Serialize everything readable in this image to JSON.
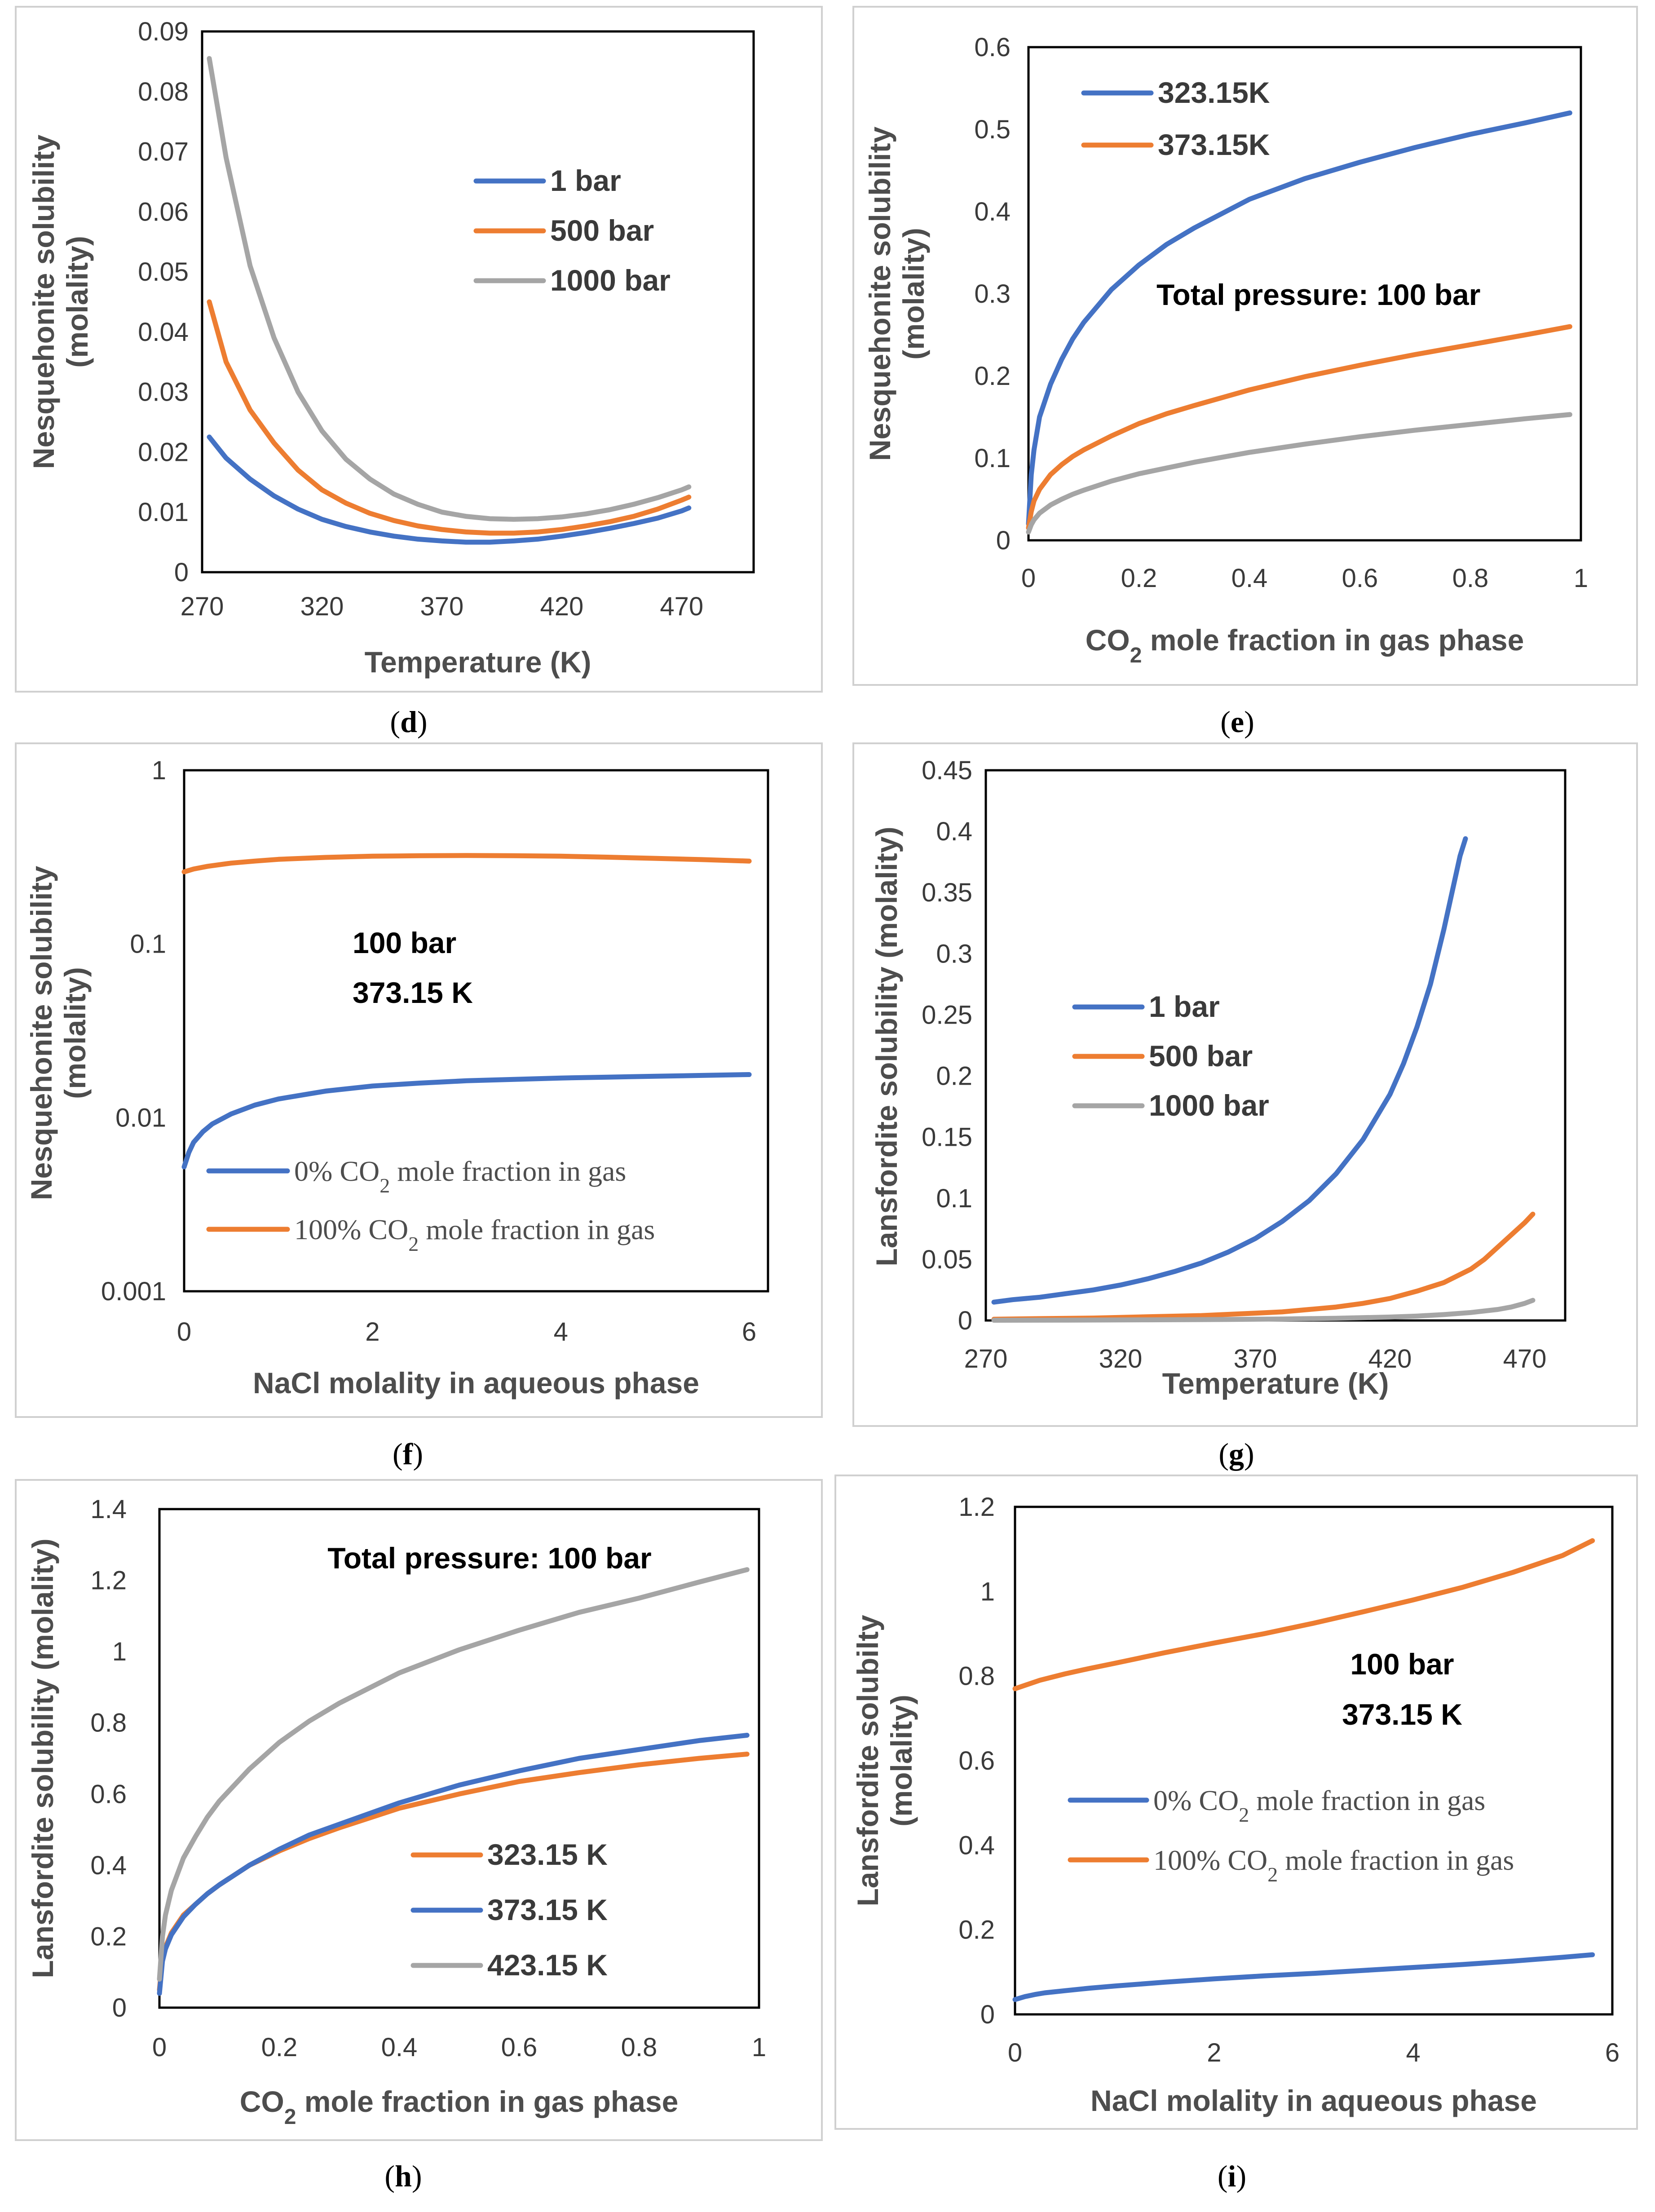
{
  "chart_data": [
    {
      "id": "d",
      "type": "line",
      "scale": "linear",
      "xlabel": "Temperature (K)",
      "ylabel": [
        "Nesquehonite solubility",
        "(molality)"
      ],
      "xlim": [
        270,
        500
      ],
      "ylim": [
        0,
        0.09
      ],
      "xticks": [
        "270",
        "320",
        "370",
        "420",
        "470"
      ],
      "yticks": [
        "0",
        "0.01",
        "0.02",
        "0.03",
        "0.04",
        "0.05",
        "0.06",
        "0.07",
        "0.08",
        "0.09"
      ],
      "legend": "center-right",
      "series": [
        {
          "name": "1 bar",
          "color": "#4472c4",
          "x": [
            273,
            280,
            290,
            300,
            310,
            320,
            330,
            340,
            350,
            360,
            370,
            380,
            390,
            400,
            410,
            420,
            430,
            440,
            450,
            460,
            470,
            473
          ],
          "y": [
            0.0225,
            0.019,
            0.0155,
            0.0127,
            0.0105,
            0.0088,
            0.0076,
            0.0067,
            0.006,
            0.0055,
            0.0052,
            0.005,
            0.005,
            0.0052,
            0.0055,
            0.006,
            0.0066,
            0.0073,
            0.0081,
            0.009,
            0.0102,
            0.0107
          ]
        },
        {
          "name": "500 bar",
          "color": "#ed7d31",
          "x": [
            273,
            280,
            290,
            300,
            310,
            320,
            330,
            340,
            350,
            360,
            370,
            380,
            390,
            400,
            410,
            420,
            430,
            440,
            450,
            460,
            470,
            473
          ],
          "y": [
            0.045,
            0.035,
            0.027,
            0.0215,
            0.017,
            0.0137,
            0.0115,
            0.0098,
            0.0086,
            0.0077,
            0.0071,
            0.0067,
            0.0065,
            0.0065,
            0.0067,
            0.0071,
            0.0077,
            0.0084,
            0.0093,
            0.0105,
            0.012,
            0.0125
          ]
        },
        {
          "name": "1000 bar",
          "color": "#a5a5a5",
          "x": [
            273,
            280,
            290,
            300,
            310,
            320,
            330,
            340,
            350,
            360,
            370,
            380,
            390,
            400,
            410,
            420,
            430,
            440,
            450,
            460,
            470,
            473
          ],
          "y": [
            0.0855,
            0.069,
            0.051,
            0.039,
            0.03,
            0.0235,
            0.0188,
            0.0155,
            0.013,
            0.0113,
            0.01,
            0.0093,
            0.0089,
            0.0088,
            0.0089,
            0.0092,
            0.0097,
            0.0104,
            0.0113,
            0.0124,
            0.0137,
            0.0142
          ]
        }
      ]
    },
    {
      "id": "e",
      "type": "line",
      "scale": "linear",
      "xlabel_pre": "CO",
      "xlabel_sub": "2",
      "xlabel_post": " mole fraction in gas phase",
      "ylabel": [
        "Nesquehonite solubility",
        "(molality)"
      ],
      "xlim": [
        0,
        1
      ],
      "ylim": [
        0,
        0.6
      ],
      "xticks": [
        "0",
        "0.2",
        "0.4",
        "0.6",
        "0.8",
        "1"
      ],
      "yticks": [
        "0",
        "0.1",
        "0.2",
        "0.3",
        "0.4",
        "0.5",
        "0.6"
      ],
      "legend": "top-left",
      "annotations": [
        "Total pressure: 100 bar"
      ],
      "series": [
        {
          "name": "323.15K",
          "color": "#4472c4",
          "x": [
            0,
            0.005,
            0.01,
            0.02,
            0.04,
            0.06,
            0.08,
            0.1,
            0.15,
            0.2,
            0.25,
            0.3,
            0.4,
            0.5,
            0.6,
            0.7,
            0.8,
            0.9,
            0.98
          ],
          "y": [
            0.02,
            0.08,
            0.11,
            0.15,
            0.19,
            0.22,
            0.245,
            0.265,
            0.305,
            0.335,
            0.36,
            0.38,
            0.415,
            0.44,
            0.46,
            0.478,
            0.494,
            0.508,
            0.52
          ]
        },
        {
          "name": "373.15K",
          "color": "#ed7d31",
          "x": [
            0,
            0.005,
            0.01,
            0.02,
            0.04,
            0.06,
            0.08,
            0.1,
            0.15,
            0.2,
            0.25,
            0.3,
            0.4,
            0.5,
            0.6,
            0.7,
            0.8,
            0.9,
            0.98
          ],
          "y": [
            0.015,
            0.035,
            0.048,
            0.062,
            0.08,
            0.092,
            0.102,
            0.11,
            0.127,
            0.142,
            0.154,
            0.164,
            0.183,
            0.199,
            0.213,
            0.226,
            0.238,
            0.25,
            0.26
          ]
        },
        {
          "name": "",
          "color": "#a5a5a5",
          "x": [
            0,
            0.005,
            0.01,
            0.02,
            0.04,
            0.06,
            0.08,
            0.1,
            0.15,
            0.2,
            0.25,
            0.3,
            0.4,
            0.5,
            0.6,
            0.7,
            0.8,
            0.9,
            0.98
          ],
          "y": [
            0.01,
            0.019,
            0.025,
            0.033,
            0.043,
            0.05,
            0.056,
            0.061,
            0.072,
            0.081,
            0.088,
            0.095,
            0.107,
            0.117,
            0.126,
            0.134,
            0.141,
            0.148,
            0.153
          ]
        }
      ]
    },
    {
      "id": "f",
      "type": "line",
      "scale": "log",
      "xlabel": "NaCl molality in aqueous phase",
      "ylabel": [
        "Nesquehonite solubility",
        "(molality)"
      ],
      "xlim": [
        0,
        6.2
      ],
      "ylim": [
        0.001,
        1
      ],
      "xticks": [
        "0",
        "2",
        "4",
        "6"
      ],
      "yticks": [
        "0.001",
        "0.01",
        "0.1",
        "1"
      ],
      "legend": "bottom-left",
      "annotations": [
        "100 bar",
        "373.15 K"
      ],
      "series": [
        {
          "name_pre": "0% CO",
          "name_sub": "2",
          "name_post": " mole fraction in gas",
          "color": "#4472c4",
          "x": [
            0,
            0.05,
            0.1,
            0.2,
            0.3,
            0.5,
            0.75,
            1,
            1.5,
            2,
            2.5,
            3,
            3.5,
            4,
            4.5,
            5,
            5.5,
            6
          ],
          "y": [
            0.0052,
            0.0063,
            0.0072,
            0.0083,
            0.0092,
            0.0105,
            0.0118,
            0.0128,
            0.0142,
            0.0152,
            0.0158,
            0.0163,
            0.0166,
            0.0169,
            0.0171,
            0.0173,
            0.0175,
            0.0177
          ]
        },
        {
          "name_pre": "100% CO",
          "name_sub": "2",
          "name_post": " mole fraction in gas",
          "color": "#ed7d31",
          "x": [
            0,
            0.1,
            0.25,
            0.5,
            0.75,
            1,
            1.5,
            2,
            2.5,
            3,
            3.5,
            4,
            4.5,
            5,
            5.5,
            6
          ],
          "y": [
            0.26,
            0.27,
            0.28,
            0.292,
            0.3,
            0.307,
            0.315,
            0.32,
            0.322,
            0.323,
            0.322,
            0.32,
            0.316,
            0.311,
            0.306,
            0.3
          ]
        }
      ]
    },
    {
      "id": "g",
      "type": "line",
      "scale": "linear",
      "xlabel": "Temperature (K)",
      "ylabel": [
        "Lansfordite solubility (molality)"
      ],
      "xlim": [
        270,
        485
      ],
      "ylim": [
        0,
        0.45
      ],
      "xticks": [
        "270",
        "320",
        "370",
        "420",
        "470"
      ],
      "yticks": [
        "0",
        "0.05",
        "0.1",
        "0.15",
        "0.2",
        "0.25",
        "0.3",
        "0.35",
        "0.4",
        "0.45"
      ],
      "legend": "center-left",
      "series": [
        {
          "name": "1 bar",
          "color": "#4472c4",
          "x": [
            273,
            280,
            290,
            300,
            310,
            320,
            330,
            340,
            350,
            360,
            370,
            380,
            390,
            400,
            410,
            420,
            425,
            430,
            435,
            440,
            443,
            446,
            448
          ],
          "y": [
            0.015,
            0.017,
            0.019,
            0.022,
            0.025,
            0.029,
            0.034,
            0.04,
            0.047,
            0.056,
            0.067,
            0.081,
            0.098,
            0.12,
            0.148,
            0.185,
            0.21,
            0.24,
            0.275,
            0.32,
            0.35,
            0.38,
            0.394
          ]
        },
        {
          "name": "500 bar",
          "color": "#ed7d31",
          "x": [
            273,
            290,
            310,
            330,
            350,
            370,
            380,
            390,
            400,
            410,
            420,
            430,
            440,
            450,
            455,
            460,
            465,
            470,
            473
          ],
          "y": [
            0.001,
            0.0015,
            0.002,
            0.003,
            0.004,
            0.006,
            0.007,
            0.009,
            0.011,
            0.014,
            0.018,
            0.024,
            0.031,
            0.042,
            0.05,
            0.06,
            0.07,
            0.08,
            0.087
          ]
        },
        {
          "name": "1000 bar",
          "color": "#a5a5a5",
          "x": [
            273,
            300,
            330,
            360,
            380,
            400,
            420,
            430,
            440,
            450,
            460,
            465,
            470,
            473
          ],
          "y": [
            0.0002,
            0.0003,
            0.0005,
            0.0008,
            0.0012,
            0.0018,
            0.0028,
            0.0036,
            0.0048,
            0.0065,
            0.009,
            0.011,
            0.014,
            0.0165
          ]
        }
      ]
    },
    {
      "id": "h",
      "type": "line",
      "scale": "linear",
      "xlabel_pre": "CO",
      "xlabel_sub": "2",
      "xlabel_post": " mole fraction in gas phase",
      "ylabel": [
        "Lansfordite solubility (molality)"
      ],
      "xlim": [
        0,
        1
      ],
      "ylim": [
        0,
        1.4
      ],
      "xticks": [
        "0",
        "0.2",
        "0.4",
        "0.6",
        "0.8",
        "1"
      ],
      "yticks": [
        "0",
        "0.2",
        "0.4",
        "0.6",
        "0.8",
        "1",
        "1.2",
        "1.4"
      ],
      "legend": "bottom-right",
      "annotations": [
        "Total pressure: 100 bar"
      ],
      "series": [
        {
          "name": "323.15 K",
          "color": "#ed7d31",
          "x": [
            0,
            0.005,
            0.01,
            0.02,
            0.04,
            0.06,
            0.08,
            0.1,
            0.15,
            0.2,
            0.25,
            0.3,
            0.4,
            0.5,
            0.6,
            0.7,
            0.8,
            0.9,
            0.98
          ],
          "y": [
            0.05,
            0.14,
            0.17,
            0.21,
            0.26,
            0.29,
            0.32,
            0.345,
            0.4,
            0.44,
            0.475,
            0.505,
            0.56,
            0.6,
            0.635,
            0.66,
            0.682,
            0.7,
            0.712
          ]
        },
        {
          "name": "373.15 K",
          "color": "#4472c4",
          "x": [
            0,
            0.005,
            0.01,
            0.02,
            0.04,
            0.06,
            0.08,
            0.1,
            0.15,
            0.2,
            0.25,
            0.3,
            0.4,
            0.5,
            0.6,
            0.7,
            0.8,
            0.9,
            0.98
          ],
          "y": [
            0.04,
            0.13,
            0.165,
            0.205,
            0.255,
            0.29,
            0.32,
            0.345,
            0.4,
            0.445,
            0.485,
            0.515,
            0.575,
            0.625,
            0.665,
            0.7,
            0.725,
            0.75,
            0.765
          ]
        },
        {
          "name": "423.15 K",
          "color": "#a5a5a5",
          "x": [
            0,
            0.005,
            0.01,
            0.02,
            0.04,
            0.06,
            0.08,
            0.1,
            0.15,
            0.2,
            0.25,
            0.3,
            0.4,
            0.5,
            0.6,
            0.7,
            0.8,
            0.9,
            0.98
          ],
          "y": [
            0.08,
            0.2,
            0.26,
            0.33,
            0.42,
            0.48,
            0.535,
            0.58,
            0.67,
            0.745,
            0.805,
            0.855,
            0.94,
            1.005,
            1.06,
            1.11,
            1.15,
            1.195,
            1.23
          ]
        }
      ]
    },
    {
      "id": "i",
      "type": "line",
      "scale": "linear",
      "xlabel": "NaCl molality in aqueous phase",
      "ylabel": [
        "Lansfordite solubilty",
        "(molality)"
      ],
      "xlim": [
        0,
        6
      ],
      "ylim": [
        0,
        1.2
      ],
      "xticks": [
        "0",
        "2",
        "4",
        "6"
      ],
      "yticks": [
        "0",
        "0.2",
        "0.4",
        "0.6",
        "0.8",
        "1",
        "1.2"
      ],
      "legend": "center-right",
      "annotations": [
        "100 bar",
        "373.15 K"
      ],
      "series": [
        {
          "name_pre": "0% CO",
          "name_sub": "2",
          "name_post": " mole fraction in gas",
          "color": "#4472c4",
          "x": [
            0,
            0.1,
            0.2,
            0.3,
            0.5,
            0.75,
            1,
            1.5,
            2,
            2.5,
            3,
            3.5,
            4,
            4.5,
            5,
            5.5,
            5.8
          ],
          "y": [
            0.035,
            0.042,
            0.047,
            0.051,
            0.056,
            0.062,
            0.067,
            0.076,
            0.084,
            0.091,
            0.097,
            0.104,
            0.111,
            0.118,
            0.126,
            0.135,
            0.141
          ]
        },
        {
          "name_pre": "100% CO",
          "name_sub": "2",
          "name_post": " mole fraction in gas",
          "color": "#ed7d31",
          "x": [
            0,
            0.25,
            0.5,
            0.75,
            1,
            1.5,
            2,
            2.5,
            3,
            3.5,
            4,
            4.5,
            5,
            5.5,
            5.8
          ],
          "y": [
            0.77,
            0.79,
            0.805,
            0.818,
            0.83,
            0.855,
            0.878,
            0.9,
            0.925,
            0.952,
            0.98,
            1.01,
            1.045,
            1.085,
            1.12
          ]
        }
      ]
    }
  ],
  "captions": [
    "(d)",
    "(e)",
    "(f)",
    "(g)",
    "(h)",
    "(i)"
  ]
}
